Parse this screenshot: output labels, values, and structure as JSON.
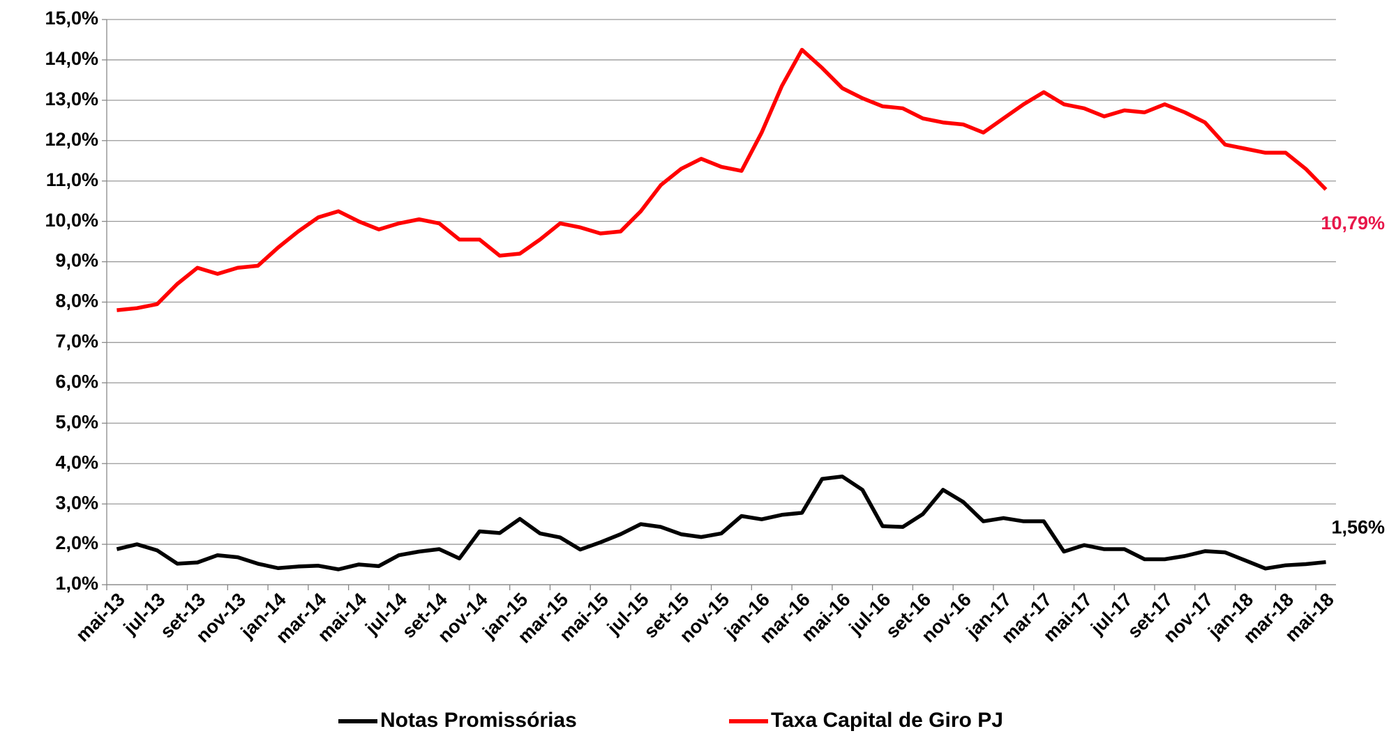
{
  "chart_data": {
    "type": "line",
    "categories": [
      "mai-13",
      null,
      "jul-13",
      null,
      "set-13",
      null,
      "nov-13",
      null,
      "jan-14",
      null,
      "mar-14",
      null,
      "mai-14",
      null,
      "jul-14",
      null,
      "set-14",
      null,
      "nov-14",
      null,
      "jan-15",
      null,
      "mar-15",
      null,
      "mai-15",
      null,
      "jul-15",
      null,
      "set-15",
      null,
      "nov-15",
      null,
      "jan-16",
      null,
      "mar-16",
      null,
      "mai-16",
      null,
      "jul-16",
      null,
      "set-16",
      null,
      "nov-16",
      null,
      "jan-17",
      null,
      "mar-17",
      null,
      "mai-17",
      null,
      "jul-17",
      null,
      "set-17",
      null,
      "nov-17",
      null,
      "jan-18",
      null,
      "mar-18",
      null,
      "mai-18"
    ],
    "series": [
      {
        "name": "Notas Promissórias",
        "color": "#000000",
        "values": [
          1.88,
          2.0,
          1.85,
          1.52,
          1.55,
          1.73,
          1.68,
          1.52,
          1.41,
          1.45,
          1.47,
          1.38,
          1.5,
          1.46,
          1.73,
          1.82,
          1.88,
          1.65,
          2.32,
          2.28,
          2.63,
          2.27,
          2.17,
          1.87,
          2.05,
          2.25,
          2.5,
          2.43,
          2.25,
          2.18,
          2.27,
          2.7,
          2.62,
          2.73,
          2.78,
          3.62,
          3.68,
          3.35,
          2.45,
          2.43,
          2.75,
          3.35,
          3.05,
          2.57,
          2.65,
          2.57,
          2.57,
          1.82,
          1.98,
          1.88,
          1.88,
          1.63,
          1.63,
          1.71,
          1.83,
          1.8,
          1.6,
          1.4,
          1.48,
          1.51,
          1.56
        ],
        "value_labels": [
          null,
          null,
          null,
          null,
          null,
          null,
          null,
          null,
          null,
          null,
          null,
          null,
          null,
          null,
          null,
          null,
          null,
          null,
          null,
          null,
          null,
          null,
          null,
          null,
          null,
          null,
          null,
          null,
          null,
          null,
          null,
          null,
          null,
          null,
          null,
          null,
          null,
          null,
          null,
          null,
          null,
          null,
          null,
          null,
          null,
          null,
          null,
          null,
          null,
          null,
          null,
          null,
          null,
          null,
          null,
          null,
          null,
          null,
          null,
          null,
          "1,56%"
        ],
        "label_color": "#000000"
      },
      {
        "name": "Taxa Capital de Giro PJ",
        "color": "#ff0000",
        "values": [
          7.8,
          7.85,
          7.95,
          8.45,
          8.85,
          8.7,
          8.85,
          8.9,
          9.35,
          9.75,
          10.1,
          10.25,
          10.0,
          9.8,
          9.95,
          10.05,
          9.95,
          9.55,
          9.55,
          9.15,
          9.2,
          9.55,
          9.95,
          9.85,
          9.7,
          9.75,
          10.25,
          10.9,
          11.3,
          11.55,
          11.35,
          11.25,
          12.2,
          13.35,
          14.25,
          13.8,
          13.3,
          13.05,
          12.85,
          12.8,
          12.55,
          12.45,
          12.4,
          12.2,
          12.55,
          12.9,
          13.2,
          12.9,
          12.8,
          12.6,
          12.75,
          12.7,
          12.9,
          12.7,
          12.45,
          11.9,
          11.8,
          11.7,
          11.7,
          11.3,
          10.79
        ],
        "value_labels": [
          null,
          null,
          null,
          null,
          null,
          null,
          null,
          null,
          null,
          null,
          null,
          null,
          null,
          null,
          null,
          null,
          null,
          null,
          null,
          null,
          null,
          null,
          null,
          null,
          null,
          null,
          null,
          null,
          null,
          null,
          null,
          null,
          null,
          null,
          null,
          null,
          null,
          null,
          null,
          null,
          null,
          null,
          null,
          null,
          null,
          null,
          null,
          null,
          null,
          null,
          null,
          null,
          null,
          null,
          null,
          null,
          null,
          null,
          null,
          null,
          "10,79%"
        ],
        "label_color": "#e8174a"
      }
    ],
    "ylim": [
      1,
      15
    ],
    "yticks": [
      {
        "value": 1,
        "label": "1,0%"
      },
      {
        "value": 2,
        "label": "2,0%"
      },
      {
        "value": 3,
        "label": "3,0%"
      },
      {
        "value": 4,
        "label": "4,0%"
      },
      {
        "value": 5,
        "label": "5,0%"
      },
      {
        "value": 6,
        "label": "6,0%"
      },
      {
        "value": 7,
        "label": "7,0%"
      },
      {
        "value": 8,
        "label": "8,0%"
      },
      {
        "value": 9,
        "label": "9,0%"
      },
      {
        "value": 10,
        "label": "10,0%"
      },
      {
        "value": 11,
        "label": "11,0%"
      },
      {
        "value": 12,
        "label": "12,0%"
      },
      {
        "value": 13,
        "label": "13,0%"
      },
      {
        "value": 14,
        "label": "14,0%"
      },
      {
        "value": 15,
        "label": "15,0%"
      }
    ],
    "grid": true,
    "legend": "bottom"
  }
}
